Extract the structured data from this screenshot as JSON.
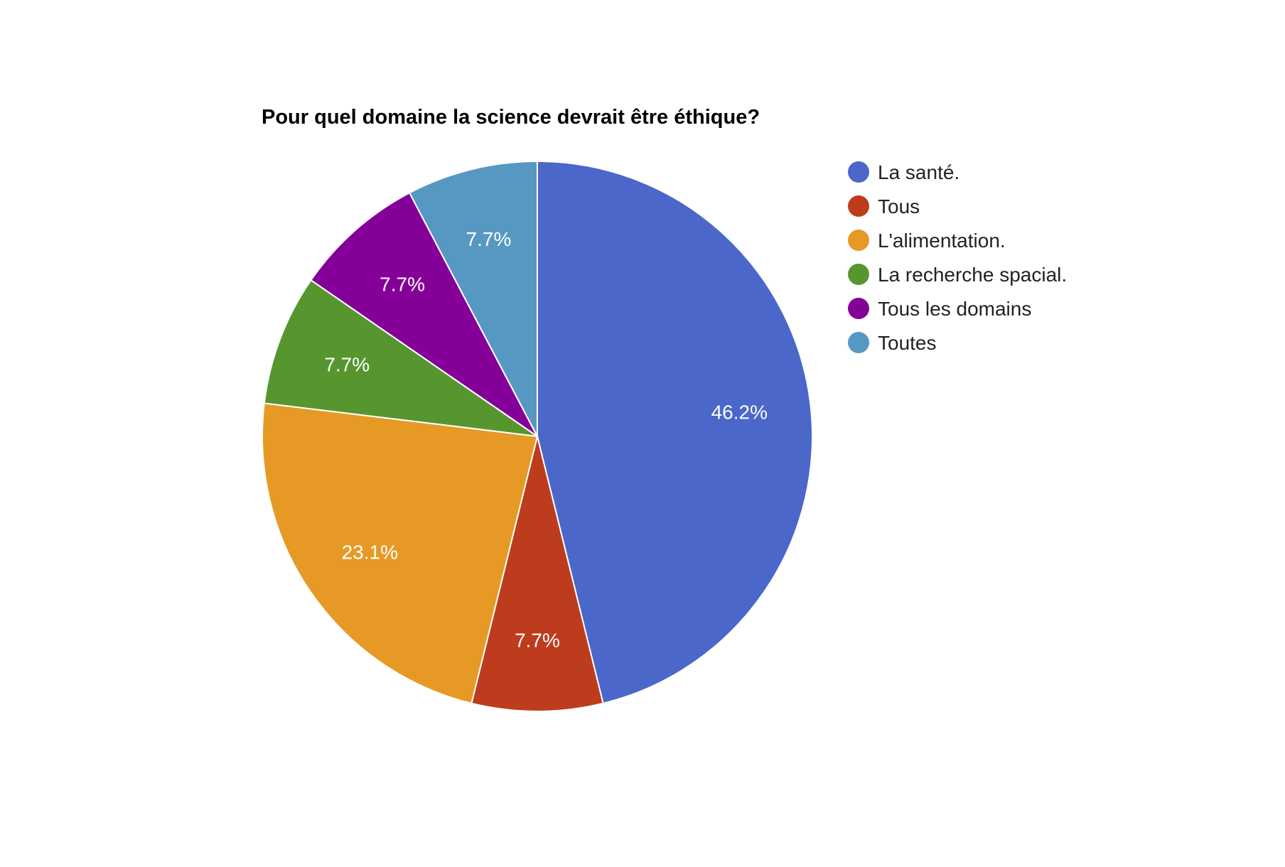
{
  "chart_data": {
    "type": "pie",
    "title": "Pour quel domaine la science devrait être éthique?",
    "slices": [
      {
        "name": "La santé.",
        "value": 46.2,
        "label": "46.2%",
        "color": "#4a67c9"
      },
      {
        "name": "Tous",
        "value": 7.7,
        "label": "7.7%",
        "color": "#bd3c1d"
      },
      {
        "name": "L'alimentation.",
        "value": 23.1,
        "label": "23.1%",
        "color": "#e69a25"
      },
      {
        "name": "La recherche spacial.",
        "value": 7.7,
        "label": "7.7%",
        "color": "#57962f"
      },
      {
        "name": "Tous les domains",
        "value": 7.7,
        "label": "7.7%",
        "color": "#850098"
      },
      {
        "name": "Toutes",
        "value": 7.7,
        "label": "7.7%",
        "color": "#5798c3"
      }
    ],
    "start_angle": "top",
    "direction": "clockwise",
    "legend_position": "right"
  }
}
